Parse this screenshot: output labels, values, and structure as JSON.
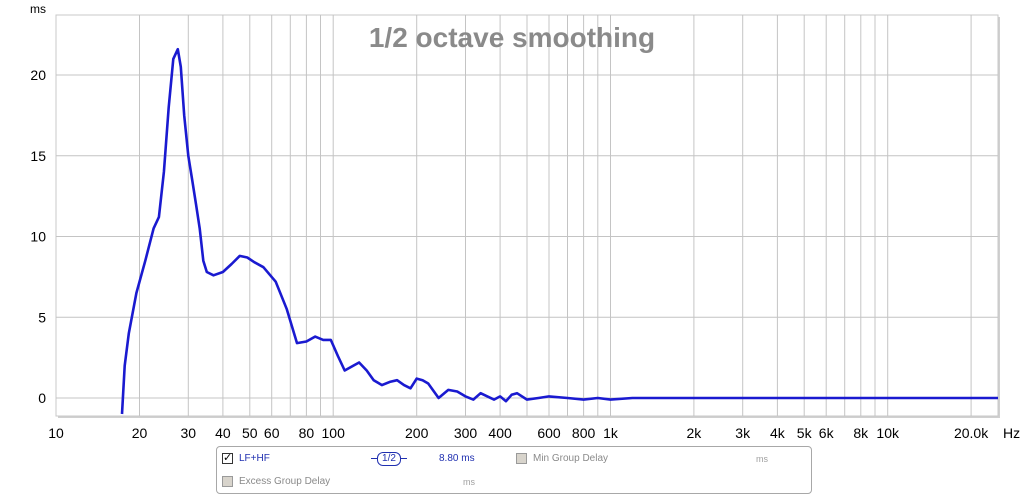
{
  "chart_data": {
    "type": "line",
    "title": "1/2 octave smoothing",
    "ylabel": "ms",
    "xlabel": "Hz",
    "x_scale": "log",
    "xlim": [
      10,
      25000
    ],
    "ylim": [
      -1,
      24
    ],
    "grid": true,
    "yticks": [
      "0",
      "5",
      "10",
      "15",
      "20"
    ],
    "ytick_values": [
      0,
      5,
      10,
      15,
      20
    ],
    "xticks": [
      "10",
      "20",
      "30",
      "40",
      "50",
      "60",
      "80",
      "100",
      "200",
      "300",
      "400",
      "600",
      "800",
      "1k",
      "2k",
      "3k",
      "4k",
      "5k",
      "6k",
      "8k",
      "10k",
      "20.0k"
    ],
    "xtick_values": [
      10,
      20,
      30,
      40,
      50,
      60,
      80,
      100,
      200,
      300,
      400,
      600,
      800,
      1000,
      2000,
      3000,
      4000,
      5000,
      6000,
      8000,
      10000,
      20000
    ],
    "series": [
      {
        "name": "LF+HF",
        "color": "#1a1ad0",
        "x": [
          17.3,
          17.7,
          18.3,
          19.5,
          21,
          22.5,
          23.5,
          24.5,
          25.5,
          26.5,
          27.5,
          28.2,
          29,
          30,
          31,
          32,
          33,
          34,
          35,
          37,
          40,
          43,
          46,
          49,
          52,
          56,
          62,
          68,
          74,
          80,
          86,
          92,
          98,
          104,
          110,
          118,
          124,
          132,
          140,
          150,
          160,
          170,
          180,
          190,
          200,
          210,
          220,
          240,
          260,
          280,
          300,
          320,
          340,
          360,
          380,
          400,
          420,
          440,
          460,
          500,
          550,
          600,
          700,
          800,
          900,
          1000,
          1200,
          1500,
          2000,
          3000,
          4000,
          6000,
          8000,
          10000,
          15000,
          20000,
          25000
        ],
        "y": [
          -1,
          2,
          4,
          6.5,
          8.5,
          10.5,
          11.2,
          14,
          18,
          21,
          21.6,
          20.5,
          17.5,
          15,
          13.5,
          12,
          10.5,
          8.5,
          7.8,
          7.6,
          7.8,
          8.3,
          8.8,
          8.7,
          8.4,
          8.1,
          7.2,
          5.5,
          3.4,
          3.5,
          3.8,
          3.6,
          3.6,
          2.6,
          1.7,
          2.0,
          2.2,
          1.7,
          1.1,
          0.8,
          1.0,
          1.1,
          0.8,
          0.6,
          1.2,
          1.1,
          0.9,
          0.0,
          0.5,
          0.4,
          0.1,
          -0.1,
          0.3,
          0.1,
          -0.1,
          0.1,
          -0.2,
          0.2,
          0.3,
          -0.1,
          0.0,
          0.1,
          0.0,
          -0.1,
          0.0,
          -0.1,
          0.0,
          0.0,
          0.0,
          0.0,
          0.0,
          0.0,
          0.0,
          0.0,
          0.0,
          0.0,
          0.0
        ]
      }
    ]
  },
  "legend": {
    "series_label": "LF+HF",
    "smoothing": "1/2",
    "value": "8.80 ms",
    "min_group_delay_label": "Min Group Delay",
    "min_group_delay_unit": "ms",
    "excess_group_delay_label": "Excess Group Delay",
    "excess_group_delay_unit": "ms",
    "checkmark": "✓"
  }
}
